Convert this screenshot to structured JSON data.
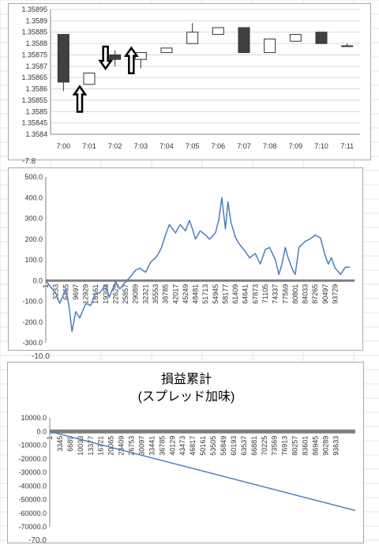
{
  "colors": {
    "line": "#4a7ebb",
    "candle_up": "#ffffff",
    "candle_down": "#404040",
    "axis": "#868686",
    "grid": "#d9d9d9",
    "zero_bar": "#7f7f7f"
  },
  "stray_labels": {
    "a": "-7.8",
    "b": "-10.0",
    "c": "-70.0"
  },
  "chart_data": [
    {
      "type": "candlestick",
      "title": "",
      "categories": [
        "7:00",
        "7:01",
        "7:02",
        "7:03",
        "7:04",
        "7:05",
        "7:06",
        "7:07",
        "7:08",
        "7:09",
        "7:10",
        "7:11"
      ],
      "ohlc": [
        {
          "o": 1.35884,
          "h": 1.35884,
          "l": 1.35859,
          "c": 1.35863
        },
        {
          "o": 1.35862,
          "h": 1.35867,
          "l": 1.35862,
          "c": 1.35867
        },
        {
          "o": 1.35875,
          "h": 1.35877,
          "l": 1.3587,
          "c": 1.35873
        },
        {
          "o": 1.35873,
          "h": 1.35876,
          "l": 1.35869,
          "c": 1.35876
        },
        {
          "o": 1.35876,
          "h": 1.35878,
          "l": 1.35876,
          "c": 1.35878
        },
        {
          "o": 1.3588,
          "h": 1.35889,
          "l": 1.3588,
          "c": 1.35885
        },
        {
          "o": 1.35884,
          "h": 1.35887,
          "l": 1.35884,
          "c": 1.35887
        },
        {
          "o": 1.35887,
          "h": 1.35887,
          "l": 1.35876,
          "c": 1.35876
        },
        {
          "o": 1.35876,
          "h": 1.35882,
          "l": 1.35876,
          "c": 1.35882
        },
        {
          "o": 1.35881,
          "h": 1.35884,
          "l": 1.35881,
          "c": 1.35884
        },
        {
          "o": 1.35885,
          "h": 1.35885,
          "l": 1.3588,
          "c": 1.3588
        },
        {
          "o": 1.35879,
          "h": 1.3588,
          "l": 1.35879,
          "c": 1.35879
        }
      ],
      "yticks": [
        "1.35895",
        "1.3589",
        "1.35885",
        "1.3588",
        "1.35875",
        "1.3587",
        "1.35865",
        "1.3586",
        "1.35855",
        "1.3585",
        "1.35845",
        "1.3584"
      ],
      "ylim": [
        1.3584,
        1.35895
      ],
      "annotations": [
        {
          "type": "arrow-up",
          "x": "7:01",
          "y": 1.35852
        },
        {
          "type": "arrow-down",
          "x": "7:02",
          "y": 1.35871
        },
        {
          "type": "arrow-up",
          "x": "7:03",
          "y": 1.35869
        }
      ]
    },
    {
      "type": "line",
      "title": "",
      "yticks": [
        "500.0",
        "400.0",
        "300.0",
        "200.0",
        "100.0",
        "0.0",
        "-100.0",
        "-200.0",
        "-300.0"
      ],
      "ylim": [
        -300,
        500
      ],
      "xticks": [
        "1",
        "3233",
        "6465",
        "9697",
        "12929",
        "16161",
        "19393",
        "22625",
        "25857",
        "29089",
        "32321",
        "35553",
        "38785",
        "42017",
        "45249",
        "48481",
        "51713",
        "54945",
        "58177",
        "61409",
        "64641",
        "67873",
        "71105",
        "74337",
        "77569",
        "80801",
        "84033",
        "87265",
        "90497",
        "93729"
      ],
      "xmax": 100000,
      "x": [
        1,
        1500,
        3233,
        4500,
        6465,
        7500,
        8500,
        9697,
        11000,
        12929,
        14500,
        16161,
        17500,
        19393,
        20500,
        22625,
        24000,
        25857,
        27500,
        29089,
        30500,
        32321,
        34000,
        35553,
        36500,
        37500,
        38785,
        40000,
        42017,
        43500,
        45249,
        46500,
        47500,
        48481,
        50000,
        51713,
        53000,
        54945,
        56000,
        57000,
        58177,
        59000,
        60000,
        61409,
        62500,
        64641,
        66000,
        67873,
        69500,
        71105,
        72500,
        74337,
        75500,
        76500,
        77569,
        78500,
        80000,
        80801,
        82000,
        84033,
        85500,
        87265,
        89000,
        90497,
        91500,
        92500,
        93729,
        95500,
        97000,
        98500
      ],
      "y": [
        0,
        -30,
        -60,
        -110,
        -40,
        -120,
        -245,
        -150,
        -180,
        -110,
        -120,
        -60,
        -60,
        -20,
        -80,
        -5,
        -40,
        -5,
        20,
        50,
        60,
        40,
        90,
        110,
        130,
        160,
        220,
        270,
        230,
        270,
        240,
        290,
        250,
        200,
        240,
        220,
        200,
        230,
        290,
        400,
        250,
        380,
        280,
        210,
        180,
        140,
        110,
        130,
        80,
        150,
        160,
        100,
        30,
        80,
        160,
        110,
        50,
        30,
        160,
        190,
        200,
        220,
        205,
        120,
        80,
        110,
        60,
        30,
        65,
        65
      ]
    },
    {
      "type": "line",
      "title": "損益累計\n(スプレッド加味)",
      "yticks": [
        "10000.0",
        "0.0",
        "-10000.0",
        "-20000.0",
        "-30000.0",
        "-40000.0",
        "-50000.0",
        "-60000.0",
        "-70000.0"
      ],
      "ylim": [
        -70000,
        10000
      ],
      "xticks": [
        "1",
        "3345",
        "6689",
        "10033",
        "13377",
        "16721",
        "20065",
        "23409",
        "26753",
        "30097",
        "33441",
        "36785",
        "40129",
        "43473",
        "46817",
        "50161",
        "53505",
        "56849",
        "60193",
        "63537",
        "66881",
        "70225",
        "73569",
        "76913",
        "80257",
        "83601",
        "86945",
        "90289",
        "93633"
      ],
      "xmax": 100000,
      "x": [
        1,
        100000
      ],
      "y": [
        0,
        -58000
      ]
    }
  ]
}
